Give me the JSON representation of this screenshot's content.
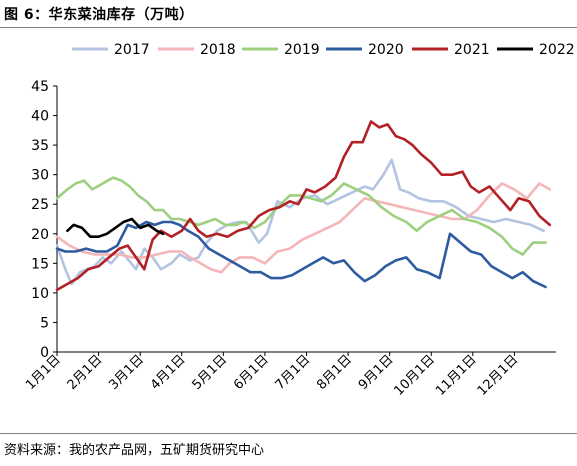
{
  "figure": {
    "title": "图 6：华东菜油库存（万吨）",
    "source": "资料来源：我的农产品网，五矿期货研究中心"
  },
  "chart_data": {
    "type": "line",
    "x_ticks": [
      "1月1日",
      "2月1日",
      "3月1日",
      "4月1日",
      "5月1日",
      "6月1日",
      "7月1日",
      "8月1日",
      "9月1日",
      "10月1日",
      "11月1日",
      "12月1日"
    ],
    "ylim": [
      0,
      45
    ],
    "y_ticks": [
      0,
      5,
      10,
      15,
      20,
      25,
      30,
      35,
      40,
      45
    ],
    "grid": false,
    "legend_position": "top",
    "series": [
      {
        "name": "2017",
        "color": "#b4c3e2",
        "points": [
          [
            0,
            18
          ],
          [
            0.2,
            14
          ],
          [
            0.35,
            11.5
          ],
          [
            0.55,
            13.5
          ],
          [
            0.9,
            14.5
          ],
          [
            1.1,
            16
          ],
          [
            1.3,
            15
          ],
          [
            1.55,
            17
          ],
          [
            1.9,
            14
          ],
          [
            2.1,
            17.5
          ],
          [
            2.3,
            16
          ],
          [
            2.5,
            14
          ],
          [
            2.75,
            15
          ],
          [
            2.95,
            16.5
          ],
          [
            3.2,
            15.5
          ],
          [
            3.4,
            16
          ],
          [
            3.6,
            18.5
          ],
          [
            3.85,
            20.5
          ],
          [
            4.1,
            21.5
          ],
          [
            4.35,
            22
          ],
          [
            4.55,
            22
          ],
          [
            4.85,
            18.5
          ],
          [
            5.05,
            20
          ],
          [
            5.3,
            25.5
          ],
          [
            5.6,
            24.5
          ],
          [
            5.9,
            26
          ],
          [
            6.2,
            26.5
          ],
          [
            6.5,
            25
          ],
          [
            6.8,
            26
          ],
          [
            7.1,
            27
          ],
          [
            7.4,
            28
          ],
          [
            7.6,
            27.5
          ],
          [
            7.85,
            30
          ],
          [
            8.05,
            32.5
          ],
          [
            8.25,
            27.5
          ],
          [
            8.45,
            27
          ],
          [
            8.7,
            26
          ],
          [
            9,
            25.5
          ],
          [
            9.3,
            25.5
          ],
          [
            9.6,
            24.5
          ],
          [
            9.9,
            23
          ],
          [
            10.2,
            22.5
          ],
          [
            10.5,
            22
          ],
          [
            10.8,
            22.5
          ],
          [
            11.1,
            22
          ],
          [
            11.4,
            21.5
          ],
          [
            11.7,
            20.5
          ]
        ]
      },
      {
        "name": "2018",
        "color": "#f4b6b8",
        "points": [
          [
            0,
            19.5
          ],
          [
            0.3,
            18
          ],
          [
            0.6,
            17
          ],
          [
            0.9,
            16.5
          ],
          [
            1.2,
            16.5
          ],
          [
            1.5,
            16.5
          ],
          [
            1.8,
            16
          ],
          [
            2.1,
            16
          ],
          [
            2.4,
            16.5
          ],
          [
            2.7,
            17
          ],
          [
            3,
            17
          ],
          [
            3.2,
            16
          ],
          [
            3.45,
            15
          ],
          [
            3.7,
            14
          ],
          [
            3.95,
            13.5
          ],
          [
            4.15,
            15
          ],
          [
            4.4,
            16
          ],
          [
            4.7,
            16
          ],
          [
            5,
            15
          ],
          [
            5.3,
            17
          ],
          [
            5.6,
            17.5
          ],
          [
            5.9,
            19
          ],
          [
            6.2,
            20
          ],
          [
            6.5,
            21
          ],
          [
            6.8,
            22
          ],
          [
            7.1,
            24
          ],
          [
            7.4,
            26
          ],
          [
            7.7,
            25.5
          ],
          [
            8,
            25
          ],
          [
            8.3,
            24.5
          ],
          [
            8.6,
            24
          ],
          [
            8.9,
            23.5
          ],
          [
            9.2,
            23
          ],
          [
            9.5,
            22.5
          ],
          [
            9.8,
            22.5
          ],
          [
            10.1,
            24
          ],
          [
            10.4,
            26.5
          ],
          [
            10.7,
            28.5
          ],
          [
            11,
            27.5
          ],
          [
            11.3,
            26
          ],
          [
            11.6,
            28.5
          ],
          [
            11.85,
            27.5
          ]
        ]
      },
      {
        "name": "2019",
        "color": "#9cd07f",
        "points": [
          [
            0,
            26
          ],
          [
            0.25,
            27.5
          ],
          [
            0.45,
            28.5
          ],
          [
            0.65,
            29
          ],
          [
            0.85,
            27.5
          ],
          [
            1.1,
            28.5
          ],
          [
            1.35,
            29.5
          ],
          [
            1.55,
            29
          ],
          [
            1.75,
            28
          ],
          [
            1.95,
            26.5
          ],
          [
            2.15,
            25.5
          ],
          [
            2.35,
            24
          ],
          [
            2.55,
            24
          ],
          [
            2.75,
            22.5
          ],
          [
            2.95,
            22.5
          ],
          [
            3.2,
            22
          ],
          [
            3.4,
            21.5
          ],
          [
            3.6,
            22
          ],
          [
            3.8,
            22.5
          ],
          [
            4.05,
            21.5
          ],
          [
            4.3,
            21.5
          ],
          [
            4.5,
            22
          ],
          [
            4.75,
            21
          ],
          [
            5,
            22
          ],
          [
            5.3,
            24.5
          ],
          [
            5.6,
            26.5
          ],
          [
            5.85,
            26.5
          ],
          [
            6.1,
            26
          ],
          [
            6.35,
            25.5
          ],
          [
            6.6,
            26.5
          ],
          [
            6.9,
            28.5
          ],
          [
            7.2,
            27.5
          ],
          [
            7.5,
            26.5
          ],
          [
            7.8,
            24.5
          ],
          [
            8.1,
            23
          ],
          [
            8.4,
            22
          ],
          [
            8.65,
            20.5
          ],
          [
            8.9,
            22
          ],
          [
            9.2,
            23
          ],
          [
            9.5,
            24
          ],
          [
            9.8,
            22.5
          ],
          [
            10.1,
            22
          ],
          [
            10.4,
            21
          ],
          [
            10.7,
            19.5
          ],
          [
            10.95,
            17.5
          ],
          [
            11.2,
            16.5
          ],
          [
            11.45,
            18.5
          ],
          [
            11.75,
            18.5
          ]
        ]
      },
      {
        "name": "2020",
        "color": "#2e5ba0",
        "points": [
          [
            0,
            17.5
          ],
          [
            0.2,
            17
          ],
          [
            0.45,
            17
          ],
          [
            0.7,
            17.5
          ],
          [
            0.95,
            17
          ],
          [
            1.2,
            17
          ],
          [
            1.45,
            18
          ],
          [
            1.7,
            21.5
          ],
          [
            1.9,
            21
          ],
          [
            2.15,
            22
          ],
          [
            2.35,
            21.5
          ],
          [
            2.55,
            22
          ],
          [
            2.75,
            22
          ],
          [
            2.95,
            21.5
          ],
          [
            3.15,
            20.5
          ],
          [
            3.4,
            19.5
          ],
          [
            3.65,
            17.5
          ],
          [
            3.9,
            16.5
          ],
          [
            4.15,
            15.5
          ],
          [
            4.4,
            14.5
          ],
          [
            4.65,
            13.5
          ],
          [
            4.9,
            13.5
          ],
          [
            5.15,
            12.5
          ],
          [
            5.4,
            12.5
          ],
          [
            5.65,
            13
          ],
          [
            5.9,
            14
          ],
          [
            6.15,
            15
          ],
          [
            6.4,
            16
          ],
          [
            6.65,
            15
          ],
          [
            6.9,
            15.5
          ],
          [
            7.15,
            13.5
          ],
          [
            7.4,
            12
          ],
          [
            7.65,
            13
          ],
          [
            7.9,
            14.5
          ],
          [
            8.15,
            15.5
          ],
          [
            8.4,
            16
          ],
          [
            8.65,
            14
          ],
          [
            8.9,
            13.5
          ],
          [
            9.2,
            12.5
          ],
          [
            9.45,
            20
          ],
          [
            9.7,
            18.5
          ],
          [
            9.95,
            17
          ],
          [
            10.2,
            16.5
          ],
          [
            10.45,
            14.5
          ],
          [
            10.7,
            13.5
          ],
          [
            10.95,
            12.5
          ],
          [
            11.2,
            13.5
          ],
          [
            11.45,
            12
          ],
          [
            11.75,
            11
          ]
        ]
      },
      {
        "name": "2021",
        "color": "#b32025",
        "points": [
          [
            0,
            10.5
          ],
          [
            0.25,
            11.5
          ],
          [
            0.5,
            12.5
          ],
          [
            0.75,
            14
          ],
          [
            1,
            14.5
          ],
          [
            1.25,
            16
          ],
          [
            1.5,
            17.5
          ],
          [
            1.7,
            18
          ],
          [
            1.9,
            16
          ],
          [
            2.1,
            14
          ],
          [
            2.3,
            19
          ],
          [
            2.5,
            20.5
          ],
          [
            2.75,
            19.5
          ],
          [
            3,
            20.5
          ],
          [
            3.2,
            22.5
          ],
          [
            3.4,
            20.5
          ],
          [
            3.6,
            19.5
          ],
          [
            3.85,
            20
          ],
          [
            4.1,
            19.5
          ],
          [
            4.35,
            20.5
          ],
          [
            4.6,
            21
          ],
          [
            4.85,
            23
          ],
          [
            5.1,
            24
          ],
          [
            5.35,
            24.5
          ],
          [
            5.6,
            25.5
          ],
          [
            5.8,
            25
          ],
          [
            6,
            27.5
          ],
          [
            6.2,
            27
          ],
          [
            6.45,
            28
          ],
          [
            6.7,
            29.5
          ],
          [
            6.9,
            33
          ],
          [
            7.1,
            35.5
          ],
          [
            7.35,
            35.5
          ],
          [
            7.55,
            39
          ],
          [
            7.75,
            38
          ],
          [
            7.95,
            38.5
          ],
          [
            8.15,
            36.5
          ],
          [
            8.35,
            36
          ],
          [
            8.55,
            35
          ],
          [
            8.75,
            33.5
          ],
          [
            9,
            32
          ],
          [
            9.25,
            30
          ],
          [
            9.5,
            30
          ],
          [
            9.75,
            30.5
          ],
          [
            9.95,
            28
          ],
          [
            10.15,
            27
          ],
          [
            10.4,
            28
          ],
          [
            10.65,
            26
          ],
          [
            10.9,
            24
          ],
          [
            11.1,
            26
          ],
          [
            11.35,
            25.5
          ],
          [
            11.6,
            23
          ],
          [
            11.85,
            21.5
          ]
        ]
      },
      {
        "name": "2022",
        "color": "#000000",
        "points": [
          [
            0.25,
            20.5
          ],
          [
            0.4,
            21.5
          ],
          [
            0.6,
            21
          ],
          [
            0.8,
            19.5
          ],
          [
            1,
            19.5
          ],
          [
            1.2,
            20
          ],
          [
            1.4,
            21
          ],
          [
            1.6,
            22
          ],
          [
            1.8,
            22.5
          ],
          [
            2,
            21
          ],
          [
            2.2,
            21.5
          ],
          [
            2.4,
            20.5
          ],
          [
            2.55,
            20
          ]
        ]
      }
    ]
  }
}
